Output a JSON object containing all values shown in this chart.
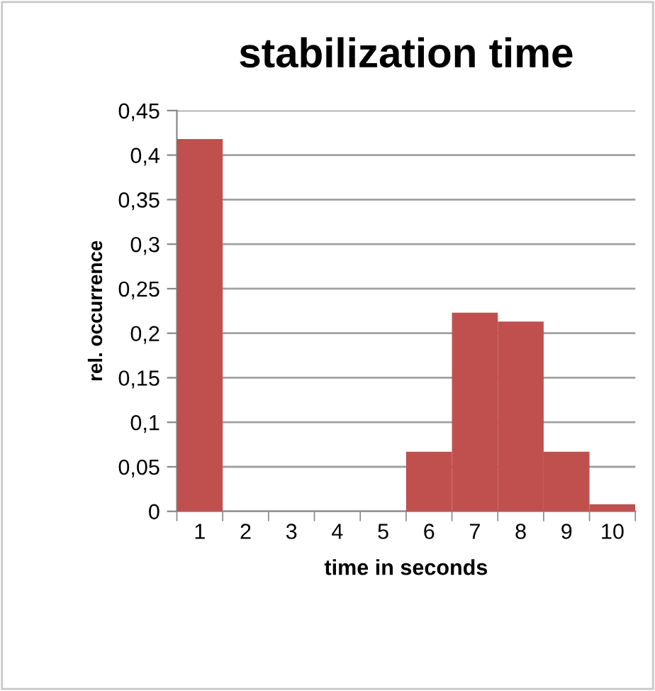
{
  "chart_data": {
    "type": "bar",
    "title": "stabilization time",
    "xlabel": "time in seconds",
    "ylabel": "rel. occurrence",
    "categories": [
      "1",
      "2",
      "3",
      "4",
      "5",
      "6",
      "7",
      "8",
      "9",
      "10"
    ],
    "values": [
      0.418,
      0,
      0,
      0,
      0,
      0.067,
      0.223,
      0.213,
      0.067,
      0.008
    ],
    "color": "#c0504d",
    "ylim": [
      0,
      0.45
    ],
    "yticks": [
      0,
      {
        "value": 0.05,
        "label": "0,05"
      },
      {
        "value": 0.1,
        "label": "0,1"
      },
      {
        "value": 0.15,
        "label": "0,15"
      },
      {
        "value": 0.2,
        "label": "0,2"
      },
      {
        "value": 0.25,
        "label": "0,25"
      },
      {
        "value": 0.3,
        "label": "0,3"
      },
      {
        "value": 0.35,
        "label": "0,35"
      },
      {
        "value": 0.4,
        "label": "0,4"
      },
      {
        "value": 0.45,
        "label": "0,45"
      }
    ],
    "grid": "y"
  }
}
